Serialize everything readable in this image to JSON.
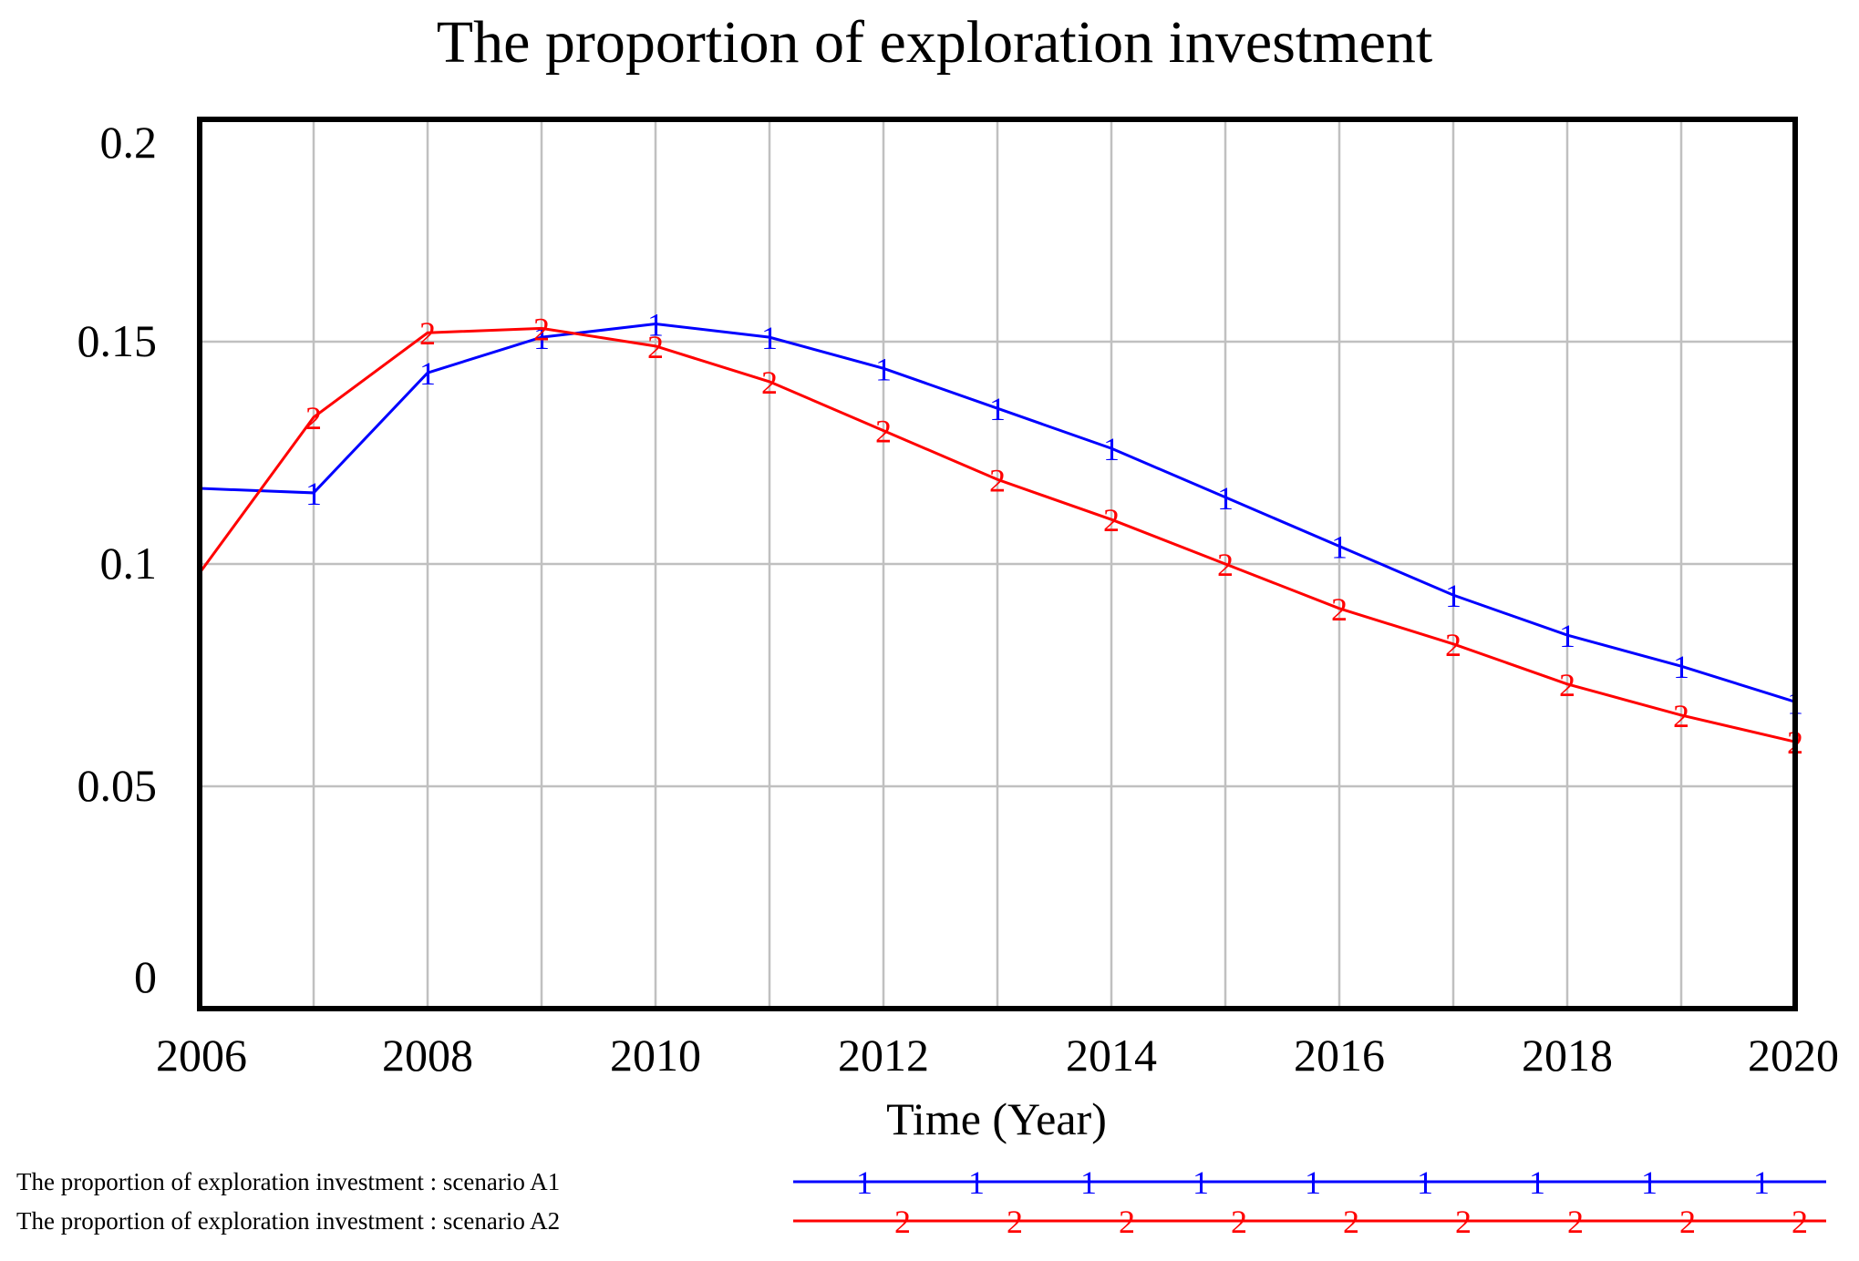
{
  "chart_data": {
    "type": "line",
    "title": "The proportion of exploration investment",
    "xlabel": "Time (Year)",
    "ylabel": "",
    "xlim": [
      2006,
      2020
    ],
    "ylim": [
      0,
      0.2
    ],
    "x_ticks": [
      "2006",
      "2008",
      "2010",
      "2012",
      "2014",
      "2016",
      "2018",
      "2020"
    ],
    "y_ticks": [
      "0",
      "0.05",
      "0.1",
      "0.15",
      "0.2"
    ],
    "grid": true,
    "legend_position": "bottom",
    "x": [
      2006,
      2007,
      2008,
      2009,
      2010,
      2011,
      2012,
      2013,
      2014,
      2015,
      2016,
      2017,
      2018,
      2019,
      2020
    ],
    "series": [
      {
        "name": "The proportion of exploration investment : scenario A1",
        "marker": "1",
        "color": "#0000ff",
        "values": [
          0.117,
          0.116,
          0.143,
          0.151,
          0.154,
          0.151,
          0.144,
          0.135,
          0.126,
          0.115,
          0.104,
          0.093,
          0.084,
          0.077,
          0.069
        ]
      },
      {
        "name": "The proportion of exploration investment : scenario A2",
        "marker": "2",
        "color": "#ff0000",
        "values": [
          0.098,
          0.133,
          0.152,
          0.153,
          0.149,
          0.141,
          0.13,
          0.119,
          0.11,
          0.1,
          0.09,
          0.082,
          0.073,
          0.066,
          0.06
        ]
      }
    ]
  }
}
